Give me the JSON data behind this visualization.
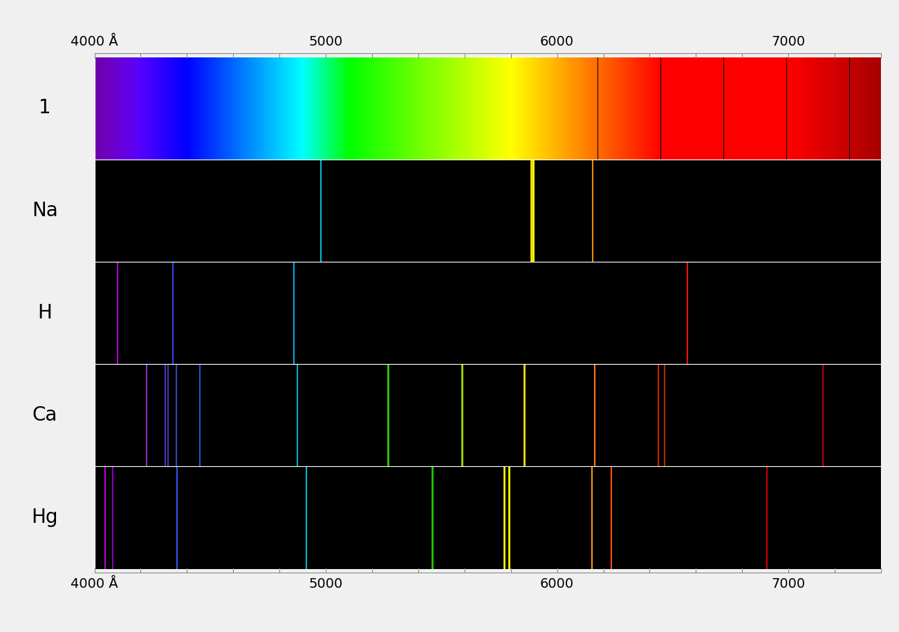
{
  "wl_min": 4000,
  "wl_max": 7400,
  "labels": [
    "1",
    "Na",
    "H",
    "Ca",
    "Hg"
  ],
  "Na_lines": [
    {
      "wl": 4978,
      "color": "#00bcd4",
      "lw": 1.5
    },
    {
      "wl": 5889,
      "color": "#ffee00",
      "lw": 2.0
    },
    {
      "wl": 5896,
      "color": "#ffff00",
      "lw": 2.0
    },
    {
      "wl": 6154,
      "color": "#ff8800",
      "lw": 1.5
    }
  ],
  "H_lines": [
    {
      "wl": 4101,
      "color": "#aa00cc",
      "lw": 1.5
    },
    {
      "wl": 4340,
      "color": "#3344ee",
      "lw": 1.5
    },
    {
      "wl": 4861,
      "color": "#00aadd",
      "lw": 1.5
    },
    {
      "wl": 6563,
      "color": "#ee1100",
      "lw": 1.5
    }
  ],
  "Ca_lines": [
    {
      "wl": 4227,
      "color": "#8833bb",
      "lw": 1.5
    },
    {
      "wl": 4307,
      "color": "#5533bb",
      "lw": 1.5
    },
    {
      "wl": 4318,
      "color": "#4433bb",
      "lw": 1.5
    },
    {
      "wl": 4355,
      "color": "#3344bb",
      "lw": 1.5
    },
    {
      "wl": 4455,
      "color": "#2255cc",
      "lw": 1.5
    },
    {
      "wl": 4878,
      "color": "#00aacc",
      "lw": 1.5
    },
    {
      "wl": 5270,
      "color": "#33cc00",
      "lw": 2.0
    },
    {
      "wl": 5590,
      "color": "#aadd00",
      "lw": 2.0
    },
    {
      "wl": 5857,
      "color": "#ffdd00",
      "lw": 2.0
    },
    {
      "wl": 6163,
      "color": "#ff7722",
      "lw": 1.5
    },
    {
      "wl": 6439,
      "color": "#cc2200",
      "lw": 1.5
    },
    {
      "wl": 6463,
      "color": "#bb2200",
      "lw": 1.5
    },
    {
      "wl": 7148,
      "color": "#bb0000",
      "lw": 1.5
    }
  ],
  "Hg_lines": [
    {
      "wl": 4047,
      "color": "#bb00dd",
      "lw": 1.5
    },
    {
      "wl": 4078,
      "color": "#8800bb",
      "lw": 1.5
    },
    {
      "wl": 4358,
      "color": "#3355ee",
      "lw": 1.5
    },
    {
      "wl": 4916,
      "color": "#00bbcc",
      "lw": 1.5
    },
    {
      "wl": 5461,
      "color": "#22cc00",
      "lw": 2.0
    },
    {
      "wl": 5770,
      "color": "#ffee00",
      "lw": 2.0
    },
    {
      "wl": 5791,
      "color": "#ffff00",
      "lw": 2.0
    },
    {
      "wl": 6150,
      "color": "#ff9900",
      "lw": 1.5
    },
    {
      "wl": 6234,
      "color": "#ff5500",
      "lw": 1.5
    },
    {
      "wl": 6907,
      "color": "#cc0000",
      "lw": 1.5
    }
  ],
  "tick_positions": [
    4000,
    4200,
    4400,
    4600,
    4800,
    5000,
    5200,
    5400,
    5600,
    5800,
    6000,
    6200,
    6400,
    6600,
    6800,
    7000,
    7200,
    7400
  ],
  "tick_labels": [
    "4000 Å",
    "",
    "",
    "",
    "",
    "5000",
    "",
    "",
    "",
    "",
    "6000",
    "",
    "",
    "",
    "",
    "7000",
    "",
    ""
  ],
  "fig_bg": "#f0f0f0",
  "label_fontsize": 20,
  "tick_fontsize": 14
}
